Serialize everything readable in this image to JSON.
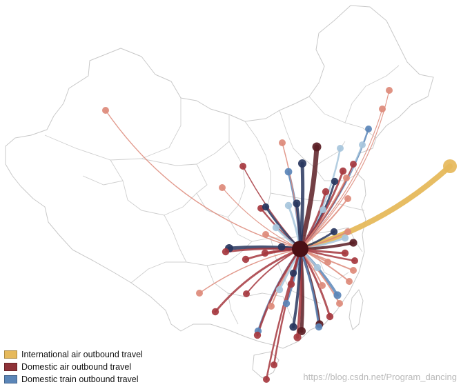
{
  "legend": [
    {
      "label": "International air outbound travel",
      "color": "#e6b95b"
    },
    {
      "label": "Domestic air outbound travel",
      "color": "#8e3238"
    },
    {
      "label": "Domestic train outbound travel",
      "color": "#5b86b8"
    }
  ],
  "colors": {
    "hub": "#4a0f14",
    "international": "#e6b95b",
    "air_dark": "#5a1d24",
    "air_mid": "#a6383f",
    "air_light": "#dd8a7a",
    "train_dark": "#28365e",
    "train_mid": "#5b86b8",
    "train_light": "#a7c6dc"
  },
  "watermark": "https://blog.csdn.net/Program_dancing"
}
